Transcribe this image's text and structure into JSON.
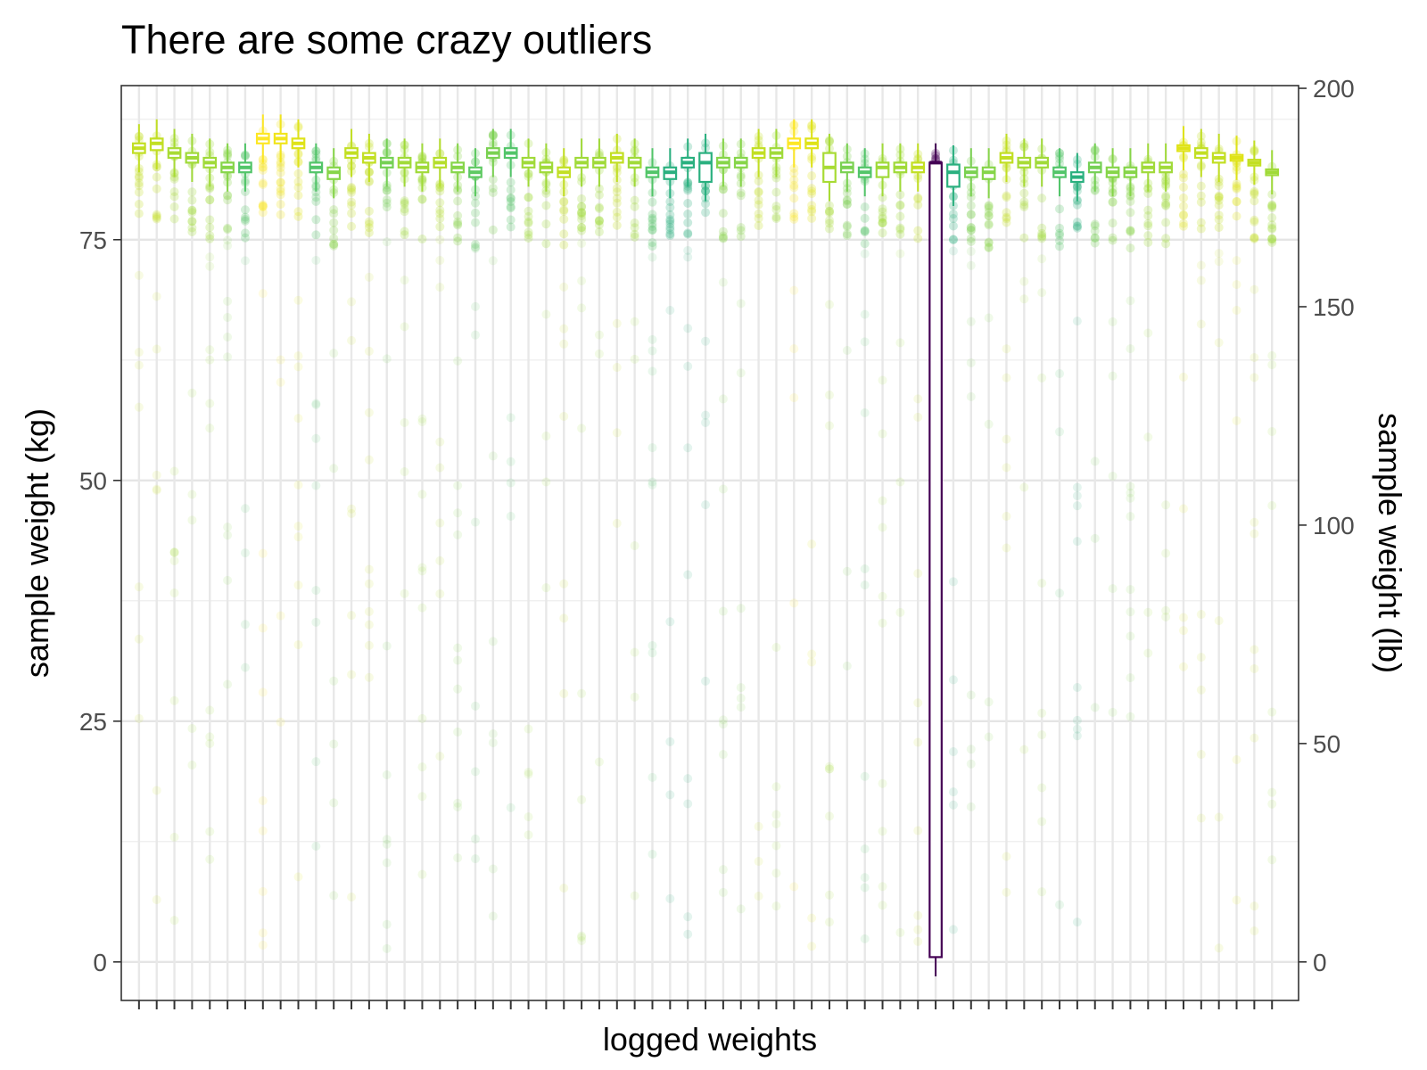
{
  "chart_data": {
    "type": "boxplot",
    "title": "There are some crazy outliers",
    "xlabel": "logged weights",
    "ylabel": "sample weight (kg)",
    "ylabel_right": "sample weight (lb)",
    "ylim": [
      -4,
      91
    ],
    "yticks": [
      0,
      25,
      50,
      75
    ],
    "yticks_right": [
      0,
      50,
      100,
      150,
      200
    ],
    "kg_to_lb": 2.20462,
    "x_ticks_labeled": false,
    "grid": true,
    "legend": "none",
    "colors": {
      "yellow": "#fde725",
      "lime": "#c2df23",
      "light-green": "#86d549",
      "green": "#52c569",
      "teal": "#2ab07f",
      "dark-purple": "#440154"
    },
    "boxes": [
      {
        "median": 84.5,
        "q1": 84,
        "q3": 85,
        "color": "#c2df23"
      },
      {
        "median": 85,
        "q1": 84.3,
        "q3": 85.5,
        "color": "#c2df23"
      },
      {
        "median": 84,
        "q1": 83.5,
        "q3": 84.5,
        "color": "#a8db34"
      },
      {
        "median": 83.5,
        "q1": 83,
        "q3": 84,
        "color": "#a0da39"
      },
      {
        "median": 83,
        "q1": 82.5,
        "q3": 83.5,
        "color": "#a0da39"
      },
      {
        "median": 82.5,
        "q1": 82,
        "q3": 83,
        "color": "#86d549"
      },
      {
        "median": 82.5,
        "q1": 82,
        "q3": 83,
        "color": "#52c569"
      },
      {
        "median": 85.5,
        "q1": 85,
        "q3": 86,
        "color": "#fde725"
      },
      {
        "median": 85.5,
        "q1": 85,
        "q3": 86,
        "color": "#f1e51d"
      },
      {
        "median": 85,
        "q1": 84.5,
        "q3": 85.5,
        "color": "#dfe318"
      },
      {
        "median": 82.5,
        "q1": 82,
        "q3": 83,
        "color": "#52c569"
      },
      {
        "median": 82,
        "q1": 81.3,
        "q3": 82.5,
        "color": "#86d549"
      },
      {
        "median": 84,
        "q1": 83.5,
        "q3": 84.5,
        "color": "#c2df23"
      },
      {
        "median": 83.5,
        "q1": 83,
        "q3": 84,
        "color": "#c2df23"
      },
      {
        "median": 83,
        "q1": 82.5,
        "q3": 83.5,
        "color": "#75d054"
      },
      {
        "median": 83,
        "q1": 82.5,
        "q3": 83.5,
        "color": "#a0da39"
      },
      {
        "median": 82.5,
        "q1": 82,
        "q3": 83,
        "color": "#a0da39"
      },
      {
        "median": 83,
        "q1": 82.5,
        "q3": 83.5,
        "color": "#b5de2b"
      },
      {
        "median": 82.5,
        "q1": 82,
        "q3": 83,
        "color": "#86d549"
      },
      {
        "median": 82,
        "q1": 81.5,
        "q3": 82.5,
        "color": "#5ec962"
      },
      {
        "median": 84,
        "q1": 83.5,
        "q3": 84.5,
        "color": "#7ad151"
      },
      {
        "median": 84,
        "q1": 83.5,
        "q3": 84.5,
        "color": "#52c569"
      },
      {
        "median": 83,
        "q1": 82.5,
        "q3": 83.5,
        "color": "#a0da39"
      },
      {
        "median": 82.5,
        "q1": 82,
        "q3": 83,
        "color": "#a0da39"
      },
      {
        "median": 82,
        "q1": 81.5,
        "q3": 82.5,
        "color": "#c2df23"
      },
      {
        "median": 83,
        "q1": 82.5,
        "q3": 83.5,
        "color": "#a0da39"
      },
      {
        "median": 83,
        "q1": 82.5,
        "q3": 83.5,
        "color": "#a0da39"
      },
      {
        "median": 83.5,
        "q1": 83,
        "q3": 84,
        "color": "#c2df23"
      },
      {
        "median": 83,
        "q1": 82.5,
        "q3": 83.5,
        "color": "#a0da39"
      },
      {
        "median": 82,
        "q1": 81.5,
        "q3": 82.5,
        "color": "#52c569"
      },
      {
        "median": 82,
        "q1": 81.3,
        "q3": 82.5,
        "color": "#2ab07f"
      },
      {
        "median": 83,
        "q1": 82.5,
        "q3": 83.5,
        "color": "#2ab07f"
      },
      {
        "median": 83,
        "q1": 81,
        "q3": 84,
        "color": "#2ab07f"
      },
      {
        "median": 83,
        "q1": 82.5,
        "q3": 83.5,
        "color": "#86d549"
      },
      {
        "median": 83,
        "q1": 82.5,
        "q3": 83.5,
        "color": "#86d549"
      },
      {
        "median": 84,
        "q1": 83.5,
        "q3": 84.5,
        "color": "#c2df23"
      },
      {
        "median": 84,
        "q1": 83.5,
        "q3": 84.5,
        "color": "#a0da39"
      },
      {
        "median": 85,
        "q1": 84.5,
        "q3": 85.5,
        "color": "#fde725"
      },
      {
        "median": 85,
        "q1": 84.5,
        "q3": 85.5,
        "color": "#dfe318"
      },
      {
        "median": 82.5,
        "q1": 81,
        "q3": 84,
        "color": "#a8db34"
      },
      {
        "median": 82.5,
        "q1": 82,
        "q3": 83,
        "color": "#7ad151"
      },
      {
        "median": 82,
        "q1": 81.5,
        "q3": 82.5,
        "color": "#52c569"
      },
      {
        "median": 82.5,
        "q1": 81.5,
        "q3": 83,
        "color": "#a0da39"
      },
      {
        "median": 82.5,
        "q1": 82,
        "q3": 83,
        "color": "#a0da39"
      },
      {
        "median": 82.5,
        "q1": 82,
        "q3": 83,
        "color": "#c2df23"
      },
      {
        "median": 83,
        "q1": 0.5,
        "q3": 83,
        "color": "#440154"
      },
      {
        "median": 82,
        "q1": 80.5,
        "q3": 82.8,
        "color": "#2ab07f"
      },
      {
        "median": 82,
        "q1": 81.5,
        "q3": 82.5,
        "color": "#7ad151"
      },
      {
        "median": 82,
        "q1": 81.3,
        "q3": 82.5,
        "color": "#86d549"
      },
      {
        "median": 83.5,
        "q1": 83,
        "q3": 84,
        "color": "#c2df23"
      },
      {
        "median": 83,
        "q1": 82.5,
        "q3": 83.5,
        "color": "#a8db34"
      },
      {
        "median": 83,
        "q1": 82.5,
        "q3": 83.5,
        "color": "#a0da39"
      },
      {
        "median": 82,
        "q1": 81.5,
        "q3": 82.5,
        "color": "#52c569"
      },
      {
        "median": 81.5,
        "q1": 81,
        "q3": 82,
        "color": "#2ab07f"
      },
      {
        "median": 82.5,
        "q1": 82,
        "q3": 83,
        "color": "#75d054"
      },
      {
        "median": 82,
        "q1": 81.5,
        "q3": 82.5,
        "color": "#86d549"
      },
      {
        "median": 82,
        "q1": 81.5,
        "q3": 82.5,
        "color": "#86d549"
      },
      {
        "median": 82.5,
        "q1": 82,
        "q3": 83,
        "color": "#a0da39"
      },
      {
        "median": 82.5,
        "q1": 82,
        "q3": 83,
        "color": "#a0da39"
      },
      {
        "median": 84.5,
        "q1": 84.2,
        "q3": 84.8,
        "color": "#dfe318"
      },
      {
        "median": 84,
        "q1": 83.5,
        "q3": 84.5,
        "color": "#c2df23"
      },
      {
        "median": 83.5,
        "q1": 83,
        "q3": 84,
        "color": "#c2df23"
      },
      {
        "median": 83.5,
        "q1": 83.2,
        "q3": 83.8,
        "color": "#dfe318"
      },
      {
        "median": 83,
        "q1": 82.7,
        "q3": 83.3,
        "color": "#c2df23"
      },
      {
        "median": 82,
        "q1": 81.7,
        "q3": 82.3,
        "color": "#a0da39"
      }
    ]
  }
}
